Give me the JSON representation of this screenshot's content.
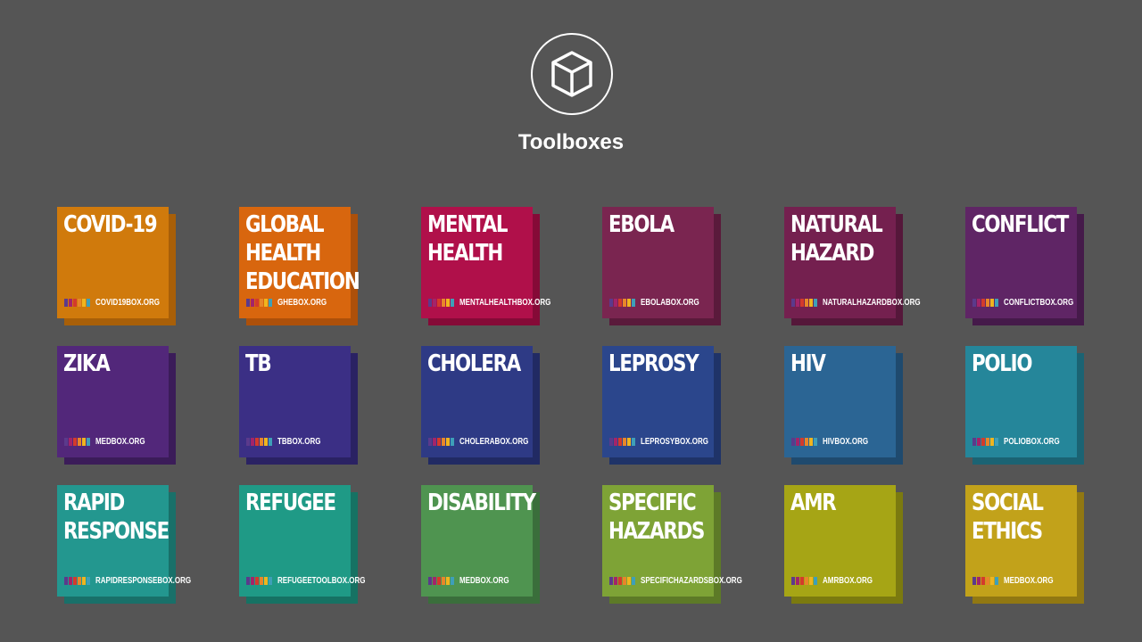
{
  "header": {
    "title": "Toolboxes",
    "icon": "cube-icon"
  },
  "stripe_colors": [
    "#5b3a8c",
    "#a3246a",
    "#d43a2c",
    "#e8862a",
    "#f0b51e",
    "#3e9fb8"
  ],
  "tiles": [
    {
      "name": "COVID-19",
      "url": "COVID19BOX.ORG",
      "color": "#d07a0c",
      "shadow": "#a85f08"
    },
    {
      "name": "GLOBAL\nHEALTH\nEDUCATION",
      "url": "GHEBOX.ORG",
      "color": "#d8660e",
      "shadow": "#ad500a"
    },
    {
      "name": "MENTAL\nHEALTH",
      "url": "MENTALHEALTHBOX.ORG",
      "color": "#b0104a",
      "shadow": "#850a37"
    },
    {
      "name": "EBOLA",
      "url": "EBOLABOX.ORG",
      "color": "#7a2550",
      "shadow": "#5a1a3b"
    },
    {
      "name": "NATURAL\nHAZARD",
      "url": "NATURALHAZARDBOX.ORG",
      "color": "#74204f",
      "shadow": "#55173a"
    },
    {
      "name": "CONFLICT",
      "url": "CONFLICTBOX.ORG",
      "color": "#5f2565",
      "shadow": "#451a4a"
    },
    {
      "name": "ZIKA",
      "url": "MEDBOX.ORG",
      "color": "#52277a",
      "shadow": "#3b1c59"
    },
    {
      "name": "TB",
      "url": "TBBOX.ORG",
      "color": "#3b2f85",
      "shadow": "#2a2263"
    },
    {
      "name": "CHOLERA",
      "url": "CHOLERABOX.ORG",
      "color": "#2e3a85",
      "shadow": "#212a63"
    },
    {
      "name": "LEPROSY",
      "url": "LEPROSYBOX.ORG",
      "color": "#2b468c",
      "shadow": "#1f3368"
    },
    {
      "name": "HIV",
      "url": "HIVBOX.ORG",
      "color": "#2b6594",
      "shadow": "#1f4a6e"
    },
    {
      "name": "POLIO",
      "url": "POLIOBOX.ORG",
      "color": "#25869a",
      "shadow": "#1b6373"
    },
    {
      "name": "RAPID\nRESPONSE",
      "url": "RAPIDRESPONSEBOX.ORG",
      "color": "#23978f",
      "shadow": "#197069"
    },
    {
      "name": "REFUGEE",
      "url": "REFUGEETOOLBOX.ORG",
      "color": "#1f9a86",
      "shadow": "#167263"
    },
    {
      "name": "DISABILITY",
      "url": "MEDBOX.ORG",
      "color": "#4f9450",
      "shadow": "#3a6e3b"
    },
    {
      "name": "SPECIFIC\nHAZARDS",
      "url": "SPECIFICHAZARDSBOX.ORG",
      "color": "#7ea336",
      "shadow": "#5d7a27"
    },
    {
      "name": "AMR",
      "url": "AMRBOX.ORG",
      "color": "#a6a515",
      "shadow": "#7b7a0f"
    },
    {
      "name": "SOCIAL\nETHICS",
      "url": "MEDBOX.ORG",
      "color": "#c2a21a",
      "shadow": "#917812"
    }
  ]
}
